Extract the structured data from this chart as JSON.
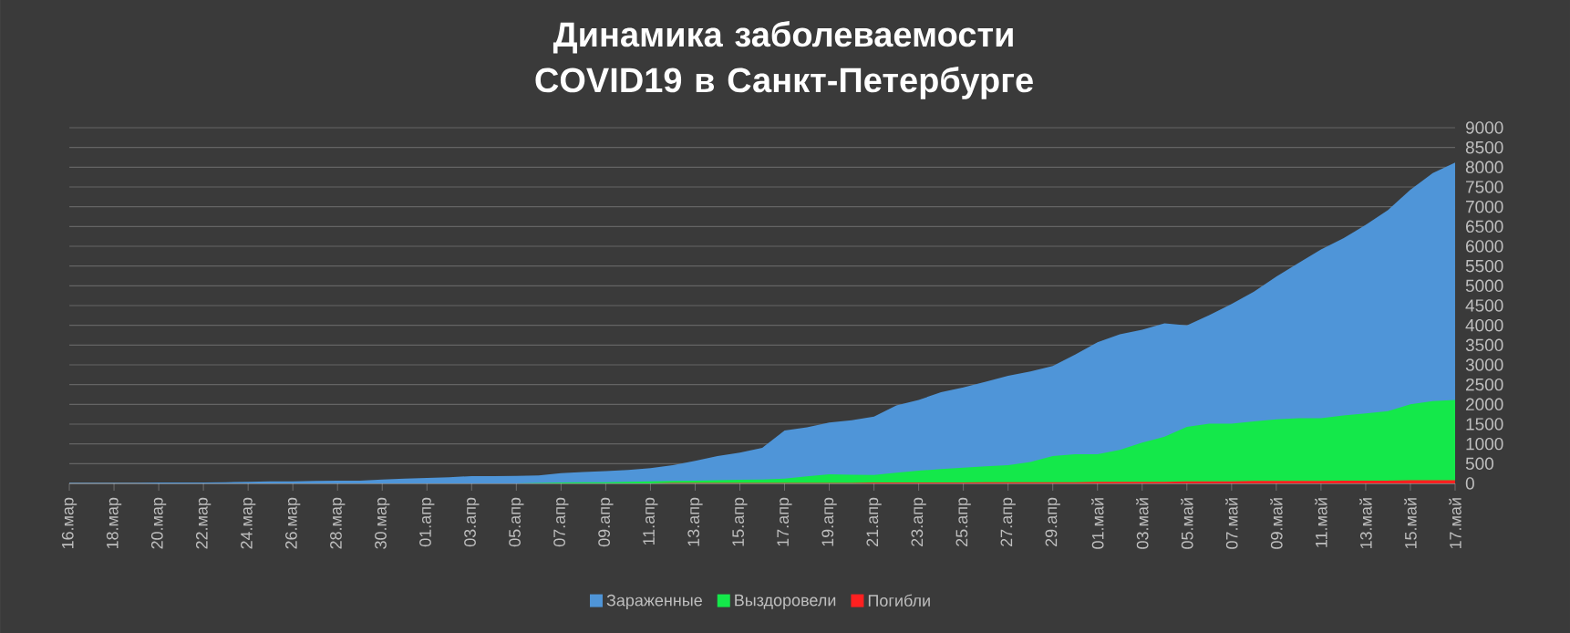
{
  "chart_data": {
    "type": "area",
    "title": "Динамика заболеваемости COVID19 в Санкт-Петербурге",
    "categories": [
      "16.мар",
      null,
      "18.мар",
      null,
      "20.мар",
      null,
      "22.мар",
      null,
      "24.мар",
      null,
      "26.мар",
      null,
      "28.мар",
      null,
      "30.мар",
      null,
      "01.апр",
      null,
      "03.апр",
      null,
      "05.апр",
      null,
      "07.апр",
      null,
      "09.апр",
      null,
      "11.апр",
      null,
      "13.апр",
      null,
      "15.апр",
      null,
      "17.апр",
      null,
      "19.апр",
      null,
      "21.апр",
      null,
      "23.апр",
      null,
      "25.апр",
      null,
      "27.апр",
      null,
      "29.апр",
      null,
      "01.май",
      null,
      "03.май",
      null,
      "05.май",
      null,
      "07.май",
      null,
      "09.май",
      null,
      "11.май",
      null,
      "13.май",
      null,
      "15.май",
      null,
      "17.май"
    ],
    "series": [
      {
        "name": "Зараженные",
        "color": "#4f95d8",
        "values": [
          10,
          10,
          10,
          10,
          20,
          20,
          20,
          30,
          40,
          50,
          50,
          60,
          70,
          70,
          100,
          120,
          140,
          155,
          185,
          185,
          190,
          200,
          260,
          290,
          310,
          340,
          385,
          460,
          570,
          690,
          780,
          900,
          1340,
          1420,
          1540,
          1600,
          1690,
          1970,
          2110,
          2310,
          2430,
          2570,
          2720,
          2830,
          2970,
          3260,
          3570,
          3770,
          3890,
          4050,
          4000,
          4260,
          4540,
          4850,
          5230,
          5580,
          5920,
          6200,
          6540,
          6920,
          7430,
          7850,
          8120
        ]
      },
      {
        "name": "Выздоровели",
        "color": "#14e84a",
        "values": [
          0,
          0,
          0,
          0,
          0,
          0,
          0,
          0,
          0,
          0,
          0,
          0,
          0,
          0,
          0,
          0,
          0,
          0,
          0,
          0,
          0,
          10,
          20,
          30,
          30,
          40,
          50,
          60,
          70,
          80,
          90,
          100,
          120,
          180,
          230,
          220,
          215,
          270,
          320,
          360,
          400,
          430,
          460,
          540,
          690,
          740,
          740,
          850,
          1030,
          1180,
          1430,
          1510,
          1510,
          1570,
          1620,
          1650,
          1650,
          1720,
          1770,
          1830,
          2000,
          2080,
          2110
        ]
      },
      {
        "name": "Погибли",
        "color": "#ff2020",
        "values": [
          0,
          0,
          0,
          0,
          0,
          0,
          0,
          0,
          0,
          0,
          0,
          0,
          0,
          0,
          0,
          0,
          0,
          0,
          0,
          0,
          0,
          0,
          0,
          0,
          0,
          0,
          0,
          10,
          10,
          10,
          10,
          10,
          10,
          10,
          10,
          10,
          20,
          20,
          20,
          20,
          20,
          30,
          30,
          30,
          30,
          30,
          40,
          40,
          40,
          40,
          50,
          50,
          50,
          60,
          60,
          60,
          60,
          70,
          70,
          70,
          80,
          80,
          80
        ]
      }
    ],
    "ylim": [
      0,
      9000
    ],
    "yticks": [
      0,
      500,
      1000,
      1500,
      2000,
      2500,
      3000,
      3500,
      4000,
      4500,
      5000,
      5500,
      6000,
      6500,
      7000,
      7500,
      8000,
      8500,
      9000
    ],
    "grid": "y",
    "legend": "bottom"
  }
}
